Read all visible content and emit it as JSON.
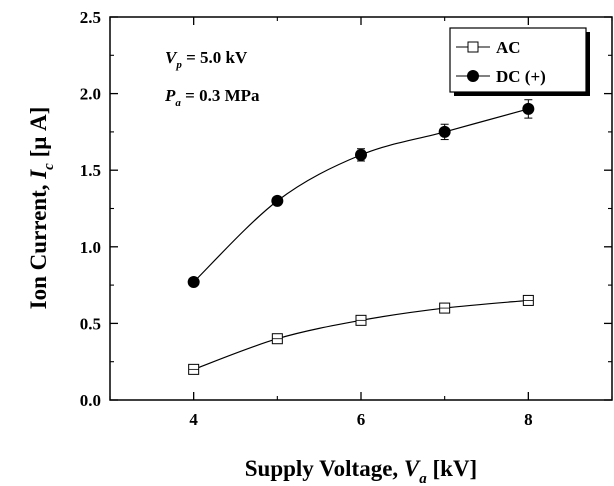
{
  "chart_data": {
    "type": "line",
    "xlabel": {
      "main": "Supply Voltage, ",
      "var": "V",
      "sub": "a",
      "unit": " [kV]"
    },
    "ylabel": {
      "main": "Ion Current, ",
      "var": "I",
      "sub": "c",
      "unit": " [μ A]"
    },
    "xlim": [
      3,
      9
    ],
    "ylim": [
      0,
      2.5
    ],
    "xticks": [
      4,
      6,
      8
    ],
    "xtick_labels": [
      "4",
      "6",
      "8"
    ],
    "yticks": [
      0,
      0.5,
      1.0,
      1.5,
      2.0,
      2.5
    ],
    "ytick_labels": [
      "0.0",
      "0.5",
      "1.0",
      "1.5",
      "2.0",
      "2.5"
    ],
    "annotations": [
      {
        "var": "V",
        "sub": "p",
        "text": " = 5.0 kV"
      },
      {
        "var": "P",
        "sub": "a",
        "text": " = 0.3 MPa"
      }
    ],
    "legend_position": "top-right",
    "series": [
      {
        "name": "AC",
        "marker": "open-square",
        "x": [
          4,
          5,
          6,
          7,
          8
        ],
        "y": [
          0.2,
          0.4,
          0.52,
          0.6,
          0.65
        ],
        "err": [
          0.02,
          0.02,
          0.03,
          0.03,
          0.03
        ]
      },
      {
        "name": "DC (+)",
        "marker": "filled-circle",
        "x": [
          4,
          5,
          6,
          7,
          8
        ],
        "y": [
          0.77,
          1.3,
          1.6,
          1.75,
          1.9
        ],
        "err": [
          0.02,
          0.02,
          0.04,
          0.05,
          0.06
        ]
      }
    ]
  }
}
